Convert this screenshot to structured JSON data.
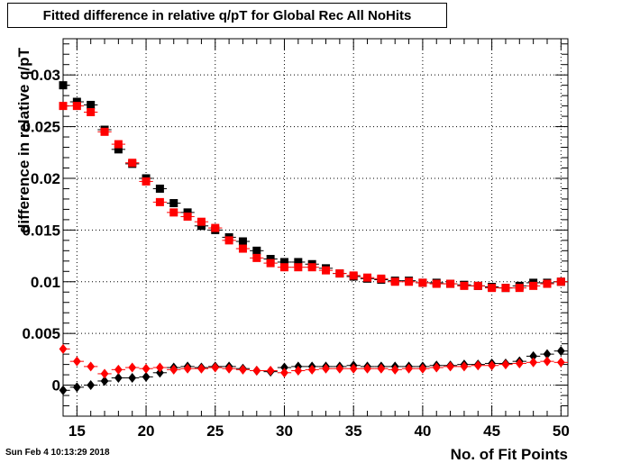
{
  "title": "Fitted difference in relative q/pT for Global Rec All NoHits",
  "timestamp": "Sun Feb  4 10:13:29 2018",
  "chart_data": {
    "type": "scatter",
    "title": "Fitted difference in relative q/pT for Global Rec All NoHits",
    "xlabel": "No. of Fit Points",
    "ylabel": "difference in relative q/pT",
    "xlim": [
      14,
      50.5
    ],
    "ylim": [
      -0.003,
      0.0335
    ],
    "grid": true,
    "x_ticks": [
      15,
      20,
      25,
      30,
      35,
      40,
      45,
      50
    ],
    "x_tick_labels": [
      "15",
      "20",
      "25",
      "30",
      "35",
      "40",
      "45",
      "50"
    ],
    "y_ticks": [
      0,
      0.005,
      0.01,
      0.015,
      0.02,
      0.025,
      0.03
    ],
    "y_tick_labels": [
      "0",
      "0.005",
      "0.01",
      "0.015",
      "0.02",
      "0.025",
      "0.03"
    ],
    "x": [
      14,
      15,
      16,
      17,
      18,
      19,
      20,
      21,
      22,
      23,
      24,
      25,
      26,
      27,
      28,
      29,
      30,
      31,
      32,
      33,
      34,
      35,
      36,
      37,
      38,
      39,
      40,
      41,
      42,
      43,
      44,
      45,
      46,
      47,
      48,
      49,
      50
    ],
    "series": [
      {
        "marker": "square",
        "color": "#000000",
        "values": [
          0.029,
          0.0274,
          0.0271,
          0.0247,
          0.0228,
          0.0214,
          0.02,
          0.019,
          0.0176,
          0.0167,
          0.0154,
          0.015,
          0.0143,
          0.0139,
          0.013,
          0.0122,
          0.0119,
          0.0119,
          0.0117,
          0.0113,
          0.0108,
          0.0105,
          0.0103,
          0.0102,
          0.0101,
          0.0101,
          0.0099,
          0.0099,
          0.0098,
          0.0097,
          0.0096,
          0.0095,
          0.0094,
          0.0096,
          0.0099,
          0.0099,
          0.01
        ]
      },
      {
        "marker": "square",
        "color": "#ff0000",
        "values": [
          0.027,
          0.027,
          0.0264,
          0.0245,
          0.0233,
          0.0215,
          0.0197,
          0.0177,
          0.0167,
          0.0163,
          0.0158,
          0.0152,
          0.014,
          0.0132,
          0.0123,
          0.0118,
          0.0114,
          0.0114,
          0.0114,
          0.0111,
          0.0108,
          0.0106,
          0.0104,
          0.0103,
          0.01,
          0.01,
          0.0099,
          0.0098,
          0.0098,
          0.0096,
          0.0096,
          0.0094,
          0.0094,
          0.0094,
          0.0096,
          0.0098,
          0.01
        ]
      },
      {
        "marker": "diamond",
        "color": "#000000",
        "values": [
          -0.0005,
          -0.0002,
          0.0,
          0.0004,
          0.0007,
          0.0007,
          0.0008,
          0.0012,
          0.0017,
          0.0018,
          0.0017,
          0.0018,
          0.0018,
          0.0016,
          0.0014,
          0.0013,
          0.0017,
          0.0018,
          0.0018,
          0.0018,
          0.0018,
          0.0019,
          0.0018,
          0.0018,
          0.0018,
          0.0018,
          0.0018,
          0.0019,
          0.0019,
          0.002,
          0.002,
          0.0021,
          0.0021,
          0.0023,
          0.0028,
          0.003,
          0.0033
        ]
      },
      {
        "marker": "diamond",
        "color": "#ff0000",
        "values": [
          0.0035,
          0.0023,
          0.0018,
          0.0011,
          0.0015,
          0.0017,
          0.0016,
          0.0017,
          0.0015,
          0.0016,
          0.0016,
          0.0017,
          0.0016,
          0.0015,
          0.0014,
          0.0014,
          0.0012,
          0.0014,
          0.0015,
          0.0016,
          0.0016,
          0.0016,
          0.0016,
          0.0016,
          0.0015,
          0.0016,
          0.0016,
          0.0017,
          0.0018,
          0.0018,
          0.0019,
          0.0019,
          0.002,
          0.0021,
          0.0022,
          0.0023,
          0.0022
        ]
      }
    ]
  }
}
